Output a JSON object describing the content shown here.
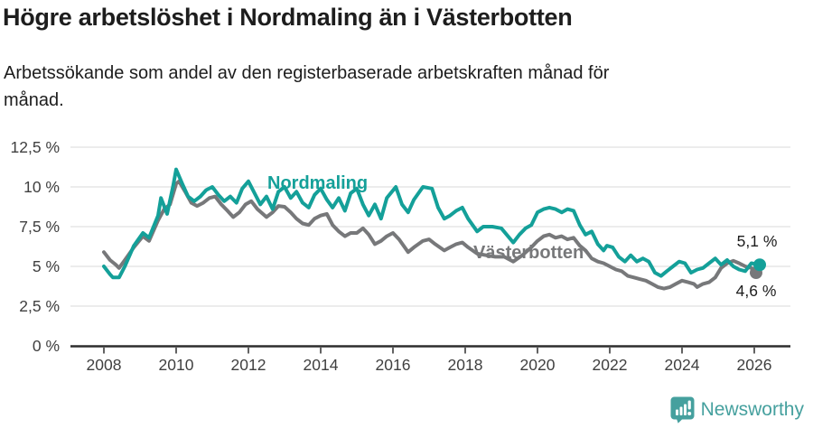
{
  "header": {
    "title": "Högre arbetslöshet i Nordmaling än i Västerbotten",
    "subtitle_line1": "Arbetssökande som andel av den registerbaserade arbetskraften månad för",
    "subtitle_line2": "månad."
  },
  "footer": {
    "brand": "Newsworthy",
    "logo_icon": "newsworthy-bubble-barchart-icon"
  },
  "colors": {
    "nordmaling": "#14a099",
    "vasterbotten": "#77787a",
    "brand": "#45a09e",
    "grid": "#d9d9d9",
    "axis": "#2d2d2d",
    "text": "#1d1d1d"
  },
  "chart_data": {
    "type": "line",
    "title": "Högre arbetslöshet i Nordmaling än i Västerbotten",
    "subtitle": "Arbetssökande som andel av den registerbaserade arbetskraften månad för månad.",
    "xlabel": "",
    "ylabel": "",
    "xlim": [
      2007.1,
      2027.0
    ],
    "ylim": [
      0,
      12.5
    ],
    "grid": true,
    "legend_position": "inline-labels",
    "yticks": [
      {
        "value": 0,
        "label": "0 %"
      },
      {
        "value": 2.5,
        "label": "2,5 %"
      },
      {
        "value": 5,
        "label": "5 %"
      },
      {
        "value": 7.5,
        "label": "7,5 %"
      },
      {
        "value": 10,
        "label": "10 %"
      },
      {
        "value": 12.5,
        "label": "12,5 %"
      }
    ],
    "xticks": [
      {
        "value": 2008,
        "label": "2008"
      },
      {
        "value": 2010,
        "label": "2010"
      },
      {
        "value": 2012,
        "label": "2012"
      },
      {
        "value": 2014,
        "label": "2014"
      },
      {
        "value": 2016,
        "label": "2016"
      },
      {
        "value": 2018,
        "label": "2018"
      },
      {
        "value": 2020,
        "label": "2020"
      },
      {
        "value": 2022,
        "label": "2022"
      },
      {
        "value": 2024,
        "label": "2024"
      },
      {
        "value": 2026,
        "label": "2026"
      }
    ],
    "series": [
      {
        "name": "Västerbotten",
        "color": "#77787a",
        "last_value_label": "4,6 %",
        "name_label": {
          "x": 524,
          "y": 286
        },
        "end_label": {
          "x": 837,
          "y": 328
        },
        "points": [
          [
            2008.0,
            5.9
          ],
          [
            2008.17,
            5.4
          ],
          [
            2008.33,
            5.1
          ],
          [
            2008.42,
            4.9
          ],
          [
            2008.58,
            5.4
          ],
          [
            2008.83,
            6.2
          ],
          [
            2009.08,
            6.9
          ],
          [
            2009.25,
            6.6
          ],
          [
            2009.5,
            7.9
          ],
          [
            2009.67,
            8.6
          ],
          [
            2009.83,
            8.9
          ],
          [
            2010.0,
            10.2
          ],
          [
            2010.08,
            10.35
          ],
          [
            2010.25,
            9.7
          ],
          [
            2010.42,
            9.0
          ],
          [
            2010.58,
            8.8
          ],
          [
            2010.75,
            9.0
          ],
          [
            2010.92,
            9.3
          ],
          [
            2011.08,
            9.4
          ],
          [
            2011.25,
            8.9
          ],
          [
            2011.42,
            8.5
          ],
          [
            2011.58,
            8.1
          ],
          [
            2011.75,
            8.4
          ],
          [
            2011.92,
            8.9
          ],
          [
            2012.08,
            9.1
          ],
          [
            2012.25,
            8.6
          ],
          [
            2012.5,
            8.1
          ],
          [
            2012.67,
            8.4
          ],
          [
            2012.83,
            8.8
          ],
          [
            2013.0,
            8.75
          ],
          [
            2013.17,
            8.4
          ],
          [
            2013.33,
            8.0
          ],
          [
            2013.5,
            7.7
          ],
          [
            2013.67,
            7.6
          ],
          [
            2013.83,
            8.0
          ],
          [
            2014.0,
            8.2
          ],
          [
            2014.17,
            8.3
          ],
          [
            2014.33,
            7.6
          ],
          [
            2014.5,
            7.2
          ],
          [
            2014.67,
            6.9
          ],
          [
            2014.83,
            7.1
          ],
          [
            2015.0,
            7.1
          ],
          [
            2015.17,
            7.4
          ],
          [
            2015.33,
            7.0
          ],
          [
            2015.5,
            6.4
          ],
          [
            2015.67,
            6.6
          ],
          [
            2015.83,
            6.9
          ],
          [
            2016.0,
            7.1
          ],
          [
            2016.17,
            6.7
          ],
          [
            2016.42,
            5.9
          ],
          [
            2016.58,
            6.2
          ],
          [
            2016.83,
            6.6
          ],
          [
            2017.0,
            6.7
          ],
          [
            2017.17,
            6.4
          ],
          [
            2017.42,
            6.0
          ],
          [
            2017.58,
            6.2
          ],
          [
            2017.75,
            6.4
          ],
          [
            2017.92,
            6.5
          ],
          [
            2018.08,
            6.2
          ],
          [
            2018.33,
            5.8
          ],
          [
            2018.58,
            5.7
          ],
          [
            2018.83,
            5.6
          ],
          [
            2019.08,
            5.6
          ],
          [
            2019.33,
            5.3
          ],
          [
            2019.58,
            5.7
          ],
          [
            2019.83,
            6.2
          ],
          [
            2020.0,
            6.6
          ],
          [
            2020.17,
            6.9
          ],
          [
            2020.33,
            7.0
          ],
          [
            2020.5,
            6.8
          ],
          [
            2020.67,
            6.9
          ],
          [
            2020.83,
            6.7
          ],
          [
            2021.0,
            6.8
          ],
          [
            2021.17,
            6.3
          ],
          [
            2021.33,
            6.0
          ],
          [
            2021.5,
            5.5
          ],
          [
            2021.67,
            5.3
          ],
          [
            2021.83,
            5.2
          ],
          [
            2022.0,
            5.0
          ],
          [
            2022.17,
            4.8
          ],
          [
            2022.33,
            4.7
          ],
          [
            2022.5,
            4.4
          ],
          [
            2022.67,
            4.3
          ],
          [
            2022.83,
            4.2
          ],
          [
            2023.0,
            4.1
          ],
          [
            2023.17,
            3.9
          ],
          [
            2023.33,
            3.7
          ],
          [
            2023.5,
            3.6
          ],
          [
            2023.67,
            3.7
          ],
          [
            2023.83,
            3.9
          ],
          [
            2024.0,
            4.1
          ],
          [
            2024.17,
            4.0
          ],
          [
            2024.33,
            3.9
          ],
          [
            2024.42,
            3.7
          ],
          [
            2024.58,
            3.9
          ],
          [
            2024.75,
            4.0
          ],
          [
            2024.92,
            4.3
          ],
          [
            2025.08,
            4.9
          ],
          [
            2025.25,
            5.2
          ],
          [
            2025.42,
            5.35
          ],
          [
            2025.58,
            5.2
          ],
          [
            2025.75,
            5.0
          ],
          [
            2025.92,
            4.9
          ],
          [
            2026.05,
            4.6
          ]
        ]
      },
      {
        "name": "Nordmaling",
        "color": "#14a099",
        "last_value_label": "5,1 %",
        "name_label": {
          "x": 296,
          "y": 209
        },
        "end_label": {
          "x": 838,
          "y": 273
        },
        "points": [
          [
            2008.0,
            5.0
          ],
          [
            2008.17,
            4.5
          ],
          [
            2008.25,
            4.3
          ],
          [
            2008.42,
            4.3
          ],
          [
            2008.58,
            5.0
          ],
          [
            2008.83,
            6.3
          ],
          [
            2009.08,
            7.1
          ],
          [
            2009.25,
            6.8
          ],
          [
            2009.5,
            8.2
          ],
          [
            2009.58,
            9.3
          ],
          [
            2009.75,
            8.3
          ],
          [
            2009.92,
            10.1
          ],
          [
            2010.0,
            11.1
          ],
          [
            2010.17,
            10.2
          ],
          [
            2010.33,
            9.4
          ],
          [
            2010.5,
            9.1
          ],
          [
            2010.67,
            9.4
          ],
          [
            2010.83,
            9.8
          ],
          [
            2011.0,
            10.0
          ],
          [
            2011.17,
            9.5
          ],
          [
            2011.33,
            9.1
          ],
          [
            2011.5,
            9.4
          ],
          [
            2011.67,
            9.0
          ],
          [
            2011.83,
            9.9
          ],
          [
            2012.0,
            10.35
          ],
          [
            2012.17,
            9.6
          ],
          [
            2012.33,
            8.9
          ],
          [
            2012.5,
            9.4
          ],
          [
            2012.67,
            8.6
          ],
          [
            2012.83,
            9.7
          ],
          [
            2013.0,
            10.0
          ],
          [
            2013.17,
            9.3
          ],
          [
            2013.33,
            9.7
          ],
          [
            2013.5,
            9.0
          ],
          [
            2013.67,
            8.7
          ],
          [
            2013.83,
            9.5
          ],
          [
            2014.0,
            9.9
          ],
          [
            2014.17,
            9.2
          ],
          [
            2014.33,
            8.7
          ],
          [
            2014.5,
            9.3
          ],
          [
            2014.67,
            8.5
          ],
          [
            2014.83,
            9.6
          ],
          [
            2015.0,
            9.9
          ],
          [
            2015.17,
            8.9
          ],
          [
            2015.33,
            8.2
          ],
          [
            2015.5,
            8.9
          ],
          [
            2015.67,
            8.0
          ],
          [
            2015.83,
            9.3
          ],
          [
            2016.08,
            10.0
          ],
          [
            2016.25,
            8.9
          ],
          [
            2016.42,
            8.4
          ],
          [
            2016.58,
            9.2
          ],
          [
            2016.83,
            10.0
          ],
          [
            2017.08,
            9.9
          ],
          [
            2017.25,
            8.7
          ],
          [
            2017.42,
            8.0
          ],
          [
            2017.58,
            8.2
          ],
          [
            2017.75,
            8.5
          ],
          [
            2017.92,
            8.7
          ],
          [
            2018.08,
            8.0
          ],
          [
            2018.33,
            7.2
          ],
          [
            2018.5,
            7.5
          ],
          [
            2018.75,
            7.5
          ],
          [
            2019.0,
            7.4
          ],
          [
            2019.33,
            6.5
          ],
          [
            2019.5,
            7.0
          ],
          [
            2019.67,
            7.4
          ],
          [
            2019.83,
            7.6
          ],
          [
            2020.0,
            8.4
          ],
          [
            2020.17,
            8.6
          ],
          [
            2020.33,
            8.7
          ],
          [
            2020.5,
            8.6
          ],
          [
            2020.67,
            8.4
          ],
          [
            2020.83,
            8.6
          ],
          [
            2021.0,
            8.5
          ],
          [
            2021.17,
            7.6
          ],
          [
            2021.33,
            7.0
          ],
          [
            2021.5,
            7.2
          ],
          [
            2021.67,
            6.4
          ],
          [
            2021.83,
            6.0
          ],
          [
            2021.92,
            6.3
          ],
          [
            2022.08,
            6.2
          ],
          [
            2022.25,
            5.6
          ],
          [
            2022.42,
            5.3
          ],
          [
            2022.58,
            5.7
          ],
          [
            2022.75,
            5.3
          ],
          [
            2022.92,
            5.5
          ],
          [
            2023.08,
            5.3
          ],
          [
            2023.25,
            4.6
          ],
          [
            2023.42,
            4.4
          ],
          [
            2023.58,
            4.7
          ],
          [
            2023.75,
            5.0
          ],
          [
            2023.92,
            5.3
          ],
          [
            2024.08,
            5.2
          ],
          [
            2024.25,
            4.6
          ],
          [
            2024.42,
            4.8
          ],
          [
            2024.58,
            4.9
          ],
          [
            2024.75,
            5.2
          ],
          [
            2024.92,
            5.5
          ],
          [
            2025.08,
            5.1
          ],
          [
            2025.25,
            5.4
          ],
          [
            2025.42,
            5.0
          ],
          [
            2025.58,
            4.8
          ],
          [
            2025.75,
            4.7
          ],
          [
            2025.92,
            5.2
          ],
          [
            2026.15,
            5.1
          ]
        ]
      }
    ]
  }
}
